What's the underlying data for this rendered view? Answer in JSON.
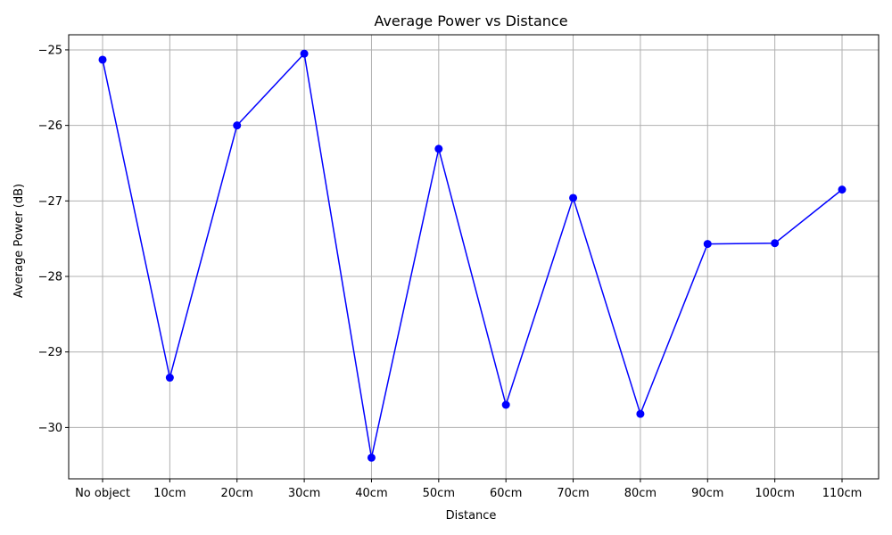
{
  "chart_data": {
    "type": "line",
    "title": "Average Power vs Distance",
    "xlabel": "Distance",
    "ylabel": "Average Power (dB)",
    "categories": [
      "No object",
      "10cm",
      "20cm",
      "30cm",
      "40cm",
      "50cm",
      "60cm",
      "70cm",
      "80cm",
      "90cm",
      "100cm",
      "110cm"
    ],
    "series": [
      {
        "values": [
          -25.13,
          -29.34,
          -26.0,
          -25.05,
          -30.4,
          -26.31,
          -29.7,
          -26.96,
          -29.82,
          -27.57,
          -27.56,
          -26.85
        ],
        "color": "#0000ff",
        "marker": "circle"
      }
    ],
    "ylim": [
      -30.68,
      -24.8
    ],
    "yticks": [
      -25,
      -26,
      -27,
      -28,
      -29,
      -30
    ],
    "ytick_labels": [
      "−25",
      "−26",
      "−27",
      "−28",
      "−29",
      "−30"
    ],
    "grid": true,
    "legend": "none"
  }
}
